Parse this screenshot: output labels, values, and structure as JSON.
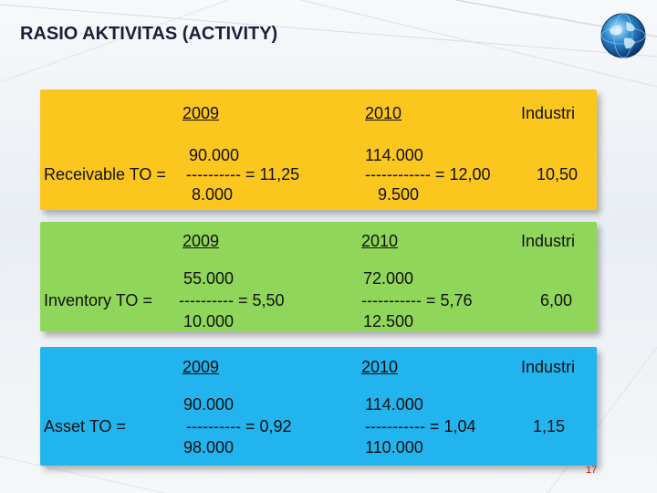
{
  "slide": {
    "title": "RASIO AKTIVITAS (ACTIVITY)",
    "page_number": "17"
  },
  "header": {
    "year_2009": "  2009  ",
    "year_2010": "  2010  ",
    "industry": "Industri"
  },
  "receivable": {
    "label": "Receivable TO = ",
    "y2009_numerator": "90.000",
    "y2009_line": "---------- = 11,25",
    "y2009_denominator": "8.000",
    "y2010_numerator": "114.000",
    "y2010_line": "------------ = 12,00",
    "y2010_denominator": "9.500",
    "industry_value": "10,50"
  },
  "inventory": {
    "label": "Inventory TO = ",
    "y2009_numerator": "55.000",
    "y2009_line": "---------- = 5,50",
    "y2009_denominator": "10.000",
    "y2010_numerator": "72.000",
    "y2010_line": "----------- = 5,76",
    "y2010_denominator": "12.500",
    "industry_value": "6,00"
  },
  "asset": {
    "label": "Asset TO  =",
    "y2009_numerator": "90.000",
    "y2009_line": "---------- = 0,92",
    "y2009_denominator": "98.000",
    "y2010_numerator": "114.000",
    "y2010_line": "----------- = 1,04",
    "y2010_denominator": "110.000",
    "industry_value": "1,15"
  },
  "colors": {
    "receivable_panel": "#fbc61e",
    "inventory_panel": "#8fd65a",
    "asset_panel": "#22b4ee",
    "page_number": "#d01010"
  },
  "icons": {
    "logo": "globe-icon"
  }
}
